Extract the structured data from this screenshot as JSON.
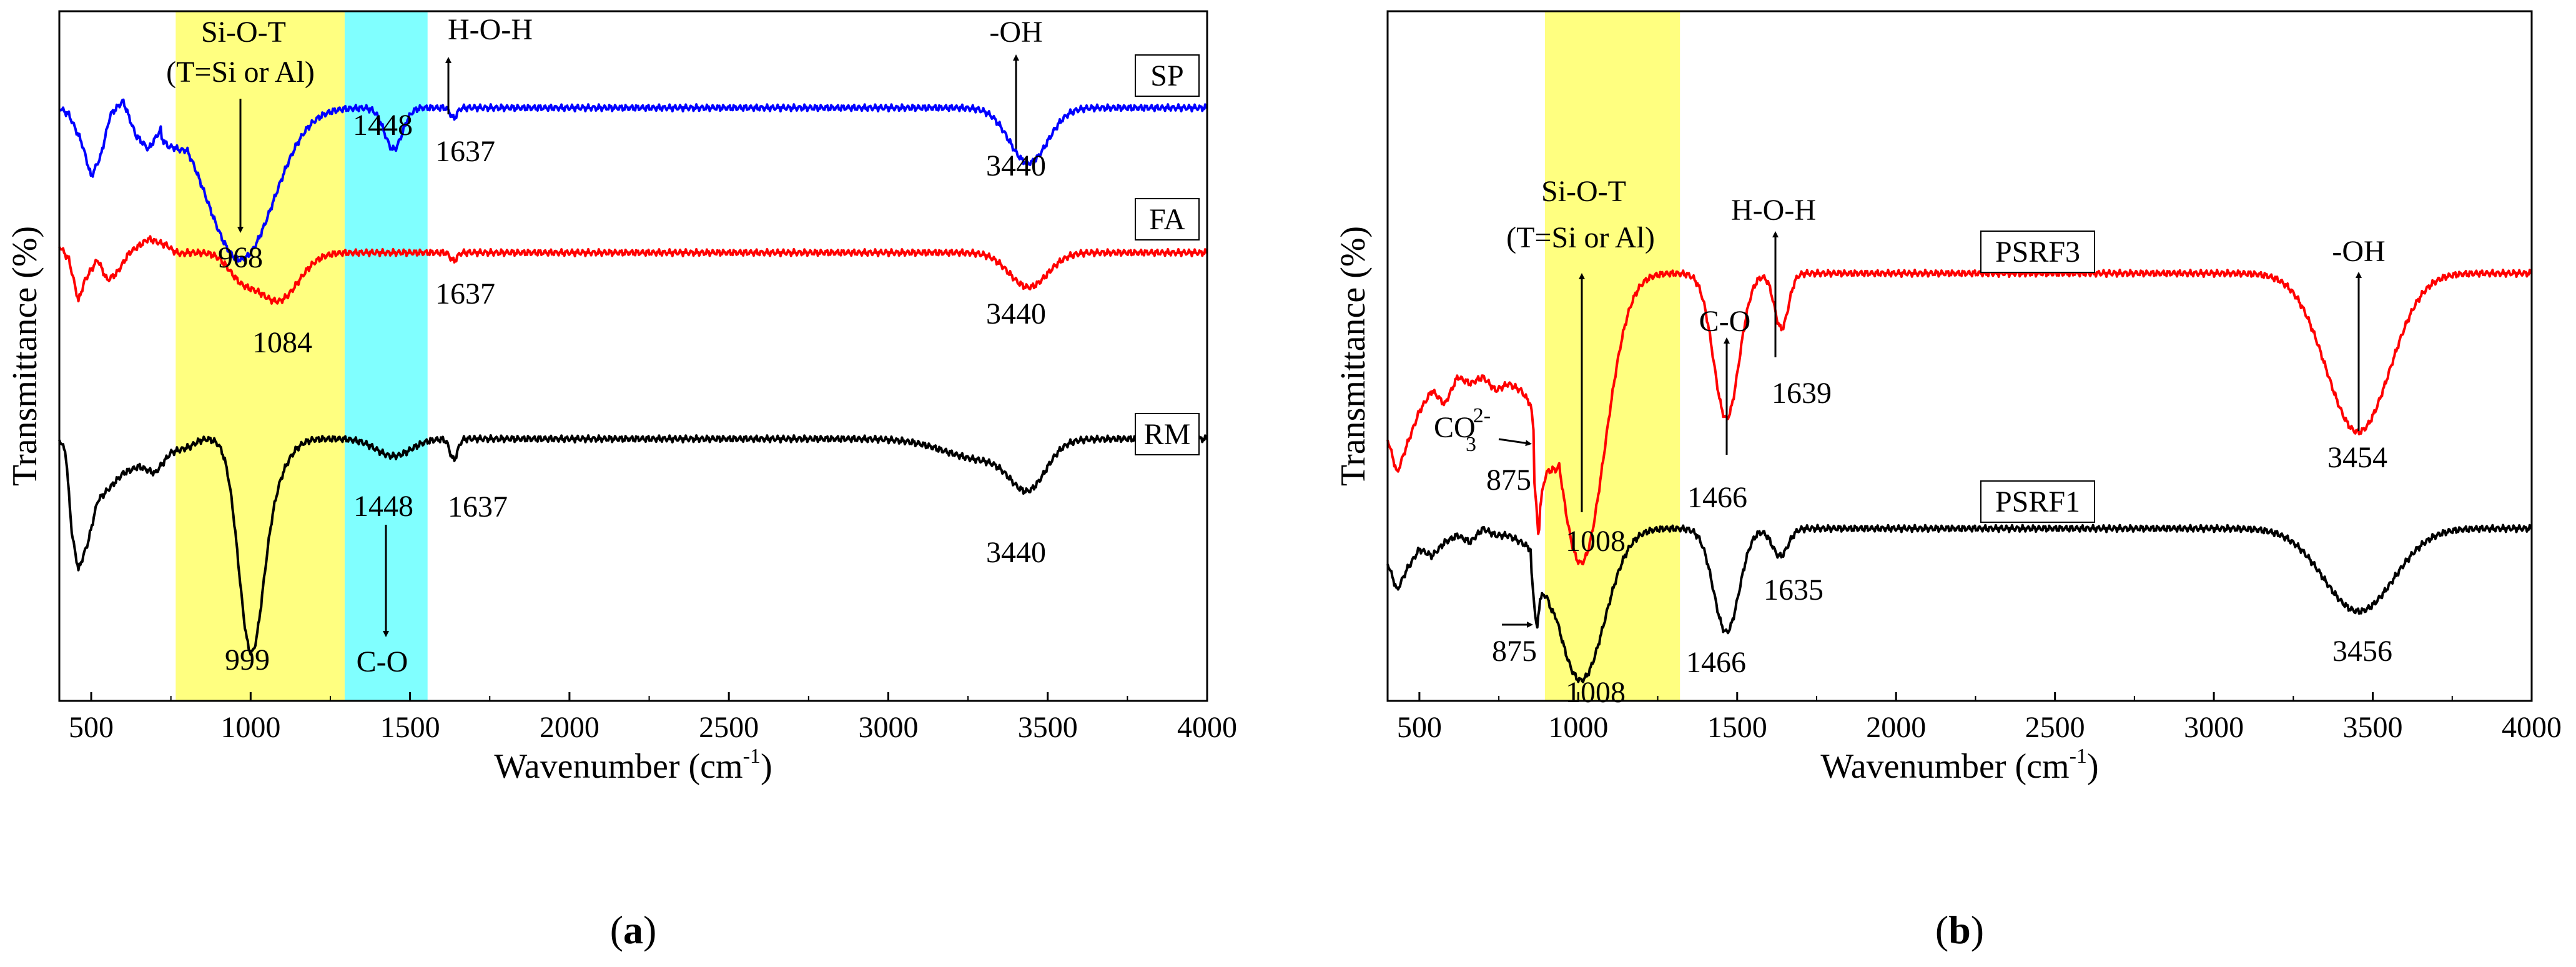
{
  "chart_data": [
    {
      "panel": "(a)",
      "panel_label_parts": [
        "(",
        "a",
        ")"
      ],
      "type": "line",
      "xlabel": "Wavenumber (cm",
      "xlabel_sup": "-1",
      "xlabel_end": ")",
      "ylabel": "Transmittance (%)",
      "xlim": [
        400,
        4000
      ],
      "xticks": [
        500,
        1000,
        1500,
        2000,
        2500,
        3000,
        3500,
        4000
      ],
      "highlight_bands": [
        {
          "from": 765,
          "to": 1295,
          "color": "#ffff80"
        },
        {
          "from": 1295,
          "to": 1555,
          "color": "#80ffff"
        }
      ],
      "series": [
        {
          "name": "SP",
          "color": "#0000ff",
          "baseline": 0.86,
          "edge_points": [
            [
              400,
              0.86
            ],
            [
              430,
              0.85
            ],
            [
              470,
              0.81
            ],
            [
              500,
              0.76
            ],
            [
              530,
              0.79
            ],
            [
              560,
              0.85
            ],
            [
              600,
              0.87
            ],
            [
              640,
              0.82
            ],
            [
              680,
              0.8
            ],
            [
              720,
              0.83
            ],
            [
              760,
              0.82
            ],
            [
              800,
              0.8
            ]
          ],
          "bands": [
            [
              968,
              0.22,
              105
            ],
            [
              1448,
              0.06,
              28
            ],
            [
              1637,
              0.015,
              10
            ],
            [
              3440,
              0.08,
              60
            ]
          ]
        },
        {
          "name": "FA",
          "color": "#ff0000",
          "baseline": 0.65,
          "edge_points": [
            [
              400,
              0.66
            ],
            [
              430,
              0.64
            ],
            [
              460,
              0.58
            ],
            [
              480,
              0.61
            ],
            [
              520,
              0.64
            ],
            [
              550,
              0.61
            ],
            [
              580,
              0.62
            ],
            [
              620,
              0.65
            ],
            [
              680,
              0.67
            ],
            [
              740,
              0.66
            ],
            [
              800,
              0.64
            ]
          ],
          "bands": [
            [
              968,
              0.03,
              40
            ],
            [
              1084,
              0.07,
              65
            ],
            [
              1637,
              0.012,
              10
            ],
            [
              3440,
              0.05,
              60
            ]
          ]
        },
        {
          "name": "RM",
          "color": "#000000",
          "baseline": 0.38,
          "edge_points": [
            [
              400,
              0.38
            ],
            [
              420,
              0.36
            ],
            [
              440,
              0.24
            ],
            [
              460,
              0.19
            ],
            [
              490,
              0.23
            ],
            [
              520,
              0.29
            ],
            [
              560,
              0.31
            ],
            [
              600,
              0.33
            ],
            [
              650,
              0.34
            ],
            [
              700,
              0.33
            ],
            [
              750,
              0.36
            ],
            [
              820,
              0.37
            ],
            [
              870,
              0.38
            ]
          ],
          "bands": [
            [
              999,
              0.28,
              38
            ],
            [
              1060,
              0.06,
              50
            ],
            [
              1448,
              0.025,
              55
            ],
            [
              1637,
              0.03,
              12
            ],
            [
              3300,
              0.03,
              120
            ],
            [
              3440,
              0.06,
              55
            ]
          ]
        }
      ],
      "labels": {
        "SP": "SP",
        "FA": "FA",
        "RM": "RM"
      },
      "annotations": {
        "si_o_t": "Si-O-T",
        "t_def": "(T=Si or Al)",
        "h_o_h": "H-O-H",
        "oh": "-OH",
        "c_o": "C-O",
        "sp_968": "968",
        "sp_1448": "1448",
        "sp_1637": "1637",
        "sp_3440": "3440",
        "fa_1084": "1084",
        "fa_1637": "1637",
        "fa_3440": "3440",
        "rm_999": "999",
        "rm_1448": "1448",
        "rm_1637": "1637",
        "rm_3440": "3440"
      }
    },
    {
      "panel": "(b)",
      "panel_label_parts": [
        "(",
        "b",
        ")"
      ],
      "type": "line",
      "xlabel": "Wavenumber (cm",
      "xlabel_sup": "-1",
      "xlabel_end": ")",
      "ylabel": "Transmittance (%)",
      "xlim": [
        400,
        4000
      ],
      "xticks": [
        500,
        1000,
        1500,
        2000,
        2500,
        3000,
        3500,
        4000
      ],
      "highlight_bands": [
        {
          "from": 895,
          "to": 1320,
          "color": "#ffff80"
        }
      ],
      "series": [
        {
          "name": "PSRF3",
          "color": "#ff0000",
          "baseline": 0.62,
          "edge_points": [
            [
              400,
              0.38
            ],
            [
              430,
              0.33
            ],
            [
              460,
              0.37
            ],
            [
              500,
              0.42
            ],
            [
              540,
              0.45
            ],
            [
              580,
              0.43
            ],
            [
              620,
              0.47
            ],
            [
              660,
              0.46
            ],
            [
              700,
              0.47
            ],
            [
              740,
              0.45
            ],
            [
              780,
              0.46
            ],
            [
              820,
              0.45
            ],
            [
              850,
              0.43
            ],
            [
              865,
              0.37
            ],
            [
              875,
              0.32
            ],
            [
              880,
              0.38
            ],
            [
              900,
              0.41
            ],
            [
              920,
              0.4
            ],
            [
              940,
              0.36
            ]
          ],
          "bands": [
            [
              1008,
              0.42,
              75
            ],
            [
              1466,
              0.21,
              40
            ],
            [
              1639,
              0.08,
              22
            ],
            [
              3454,
              0.23,
              100
            ]
          ]
        },
        {
          "name": "PSRF1",
          "color": "#000000",
          "baseline": 0.25,
          "edge_points": [
            [
              400,
              0.2
            ],
            [
              430,
              0.16
            ],
            [
              460,
              0.19
            ],
            [
              500,
              0.22
            ],
            [
              540,
              0.21
            ],
            [
              580,
              0.23
            ],
            [
              620,
              0.24
            ],
            [
              660,
              0.23
            ],
            [
              700,
              0.25
            ],
            [
              740,
              0.24
            ],
            [
              780,
              0.24
            ],
            [
              820,
              0.23
            ],
            [
              850,
              0.22
            ],
            [
              870,
              0.14
            ],
            [
              880,
              0.19
            ],
            [
              900,
              0.21
            ],
            [
              930,
              0.17
            ]
          ],
          "bands": [
            [
              1008,
              0.22,
              75
            ],
            [
              1466,
              0.15,
              40
            ],
            [
              1635,
              0.04,
              25
            ],
            [
              3456,
              0.12,
              110
            ]
          ]
        }
      ],
      "labels": {
        "PSRF3": "PSRF3",
        "PSRF1": "PSRF1"
      },
      "annotations": {
        "si_o_t": "Si-O-T",
        "t_def": "(T=Si or Al)",
        "h_o_h": "H-O-H",
        "oh": "-OH",
        "c_o": "C-O",
        "co3_base": "CO",
        "co3_sup": "2-",
        "co3_sub": "3",
        "r_875": "875",
        "r_1008": "1008",
        "r_1466": "1466",
        "r_1639": "1639",
        "r_3454": "3454",
        "k_875": "875",
        "k_1008": "1008",
        "k_1466": "1466",
        "k_1635": "1635",
        "k_3456": "3456"
      }
    }
  ]
}
